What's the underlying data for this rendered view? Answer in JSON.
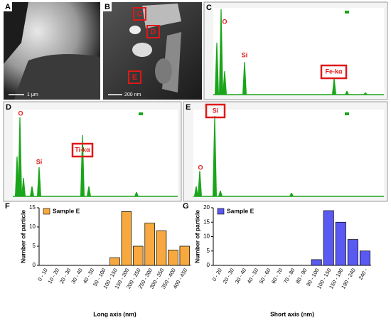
{
  "panels": [
    {
      "letter": "A",
      "scale": "1 μm"
    },
    {
      "letter": "B",
      "scale": "200 nm",
      "boxes": [
        "C",
        "D",
        "E"
      ]
    },
    {
      "letter": "C",
      "labels": [
        "O",
        "Si",
        "Fe-kα"
      ]
    },
    {
      "letter": "D",
      "labels": [
        "O",
        "Si",
        "Ti-kα"
      ]
    },
    {
      "letter": "E",
      "labels": [
        "Si",
        "O"
      ]
    }
  ],
  "chart_data": [
    {
      "type": "bar",
      "panel": "F",
      "x_label": "Long axis  (nm)",
      "y_label": "Number of particle",
      "categories": [
        "0 - 10",
        "10 - 20",
        "20 - 30",
        "30 - 40",
        "40 - 50",
        "50 - 100",
        "100 - 150",
        "150 - 200",
        "200 - 250",
        "250 - 300",
        "300 - 350",
        "350 - 400",
        "400 - 450"
      ],
      "series": [
        {
          "name": "Sample E",
          "color": "#f7a93f",
          "values": [
            0,
            0,
            0,
            0,
            0,
            0,
            2,
            14,
            5,
            11,
            9,
            4,
            5
          ]
        }
      ],
      "ylim": [
        0,
        15
      ],
      "yticks": [
        0,
        5,
        10,
        15
      ]
    },
    {
      "type": "bar",
      "panel": "G",
      "x_label": "Short axis  (nm)",
      "y_label": "Number of particle",
      "categories": [
        "0 - 20",
        "20 - 30",
        "30 - 40",
        "40 - 50",
        "50 - 60",
        "60 - 70",
        "70 - 80",
        "80 - 90",
        "90 - 100",
        "100 - 150",
        "150 - 190",
        "190 - 240",
        "240 -"
      ],
      "series": [
        {
          "name": "Sample E",
          "color": "#5a5af2",
          "values": [
            0,
            0,
            0,
            0,
            0,
            0,
            0,
            0,
            2,
            19,
            15,
            9,
            5
          ]
        }
      ],
      "ylim": [
        0,
        20
      ],
      "yticks": [
        0,
        5,
        10,
        15,
        20
      ]
    }
  ]
}
